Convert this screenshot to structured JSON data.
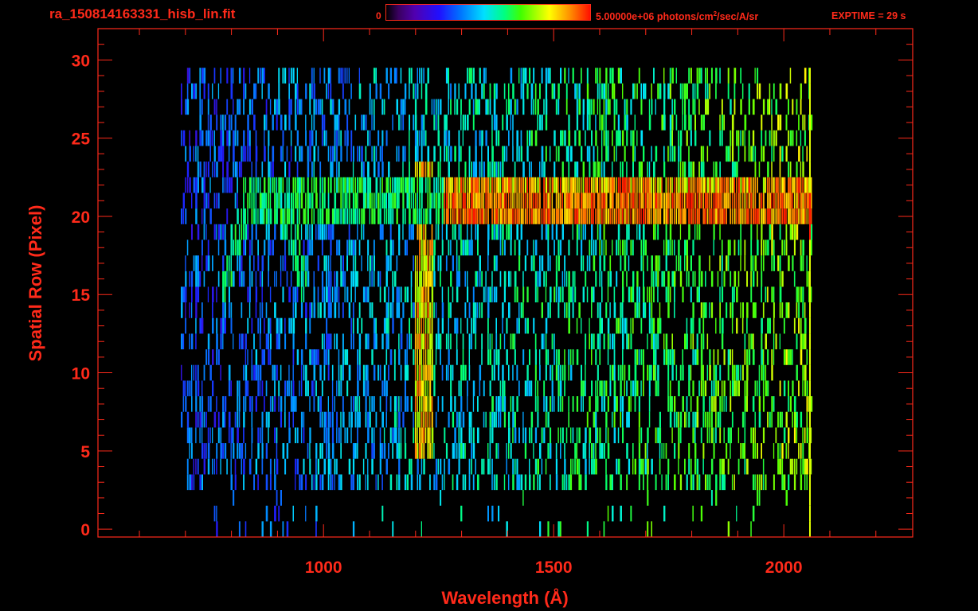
{
  "header": {
    "file_title": "ra_150814163331_hisb_lin.fit",
    "colorbar_min": "0",
    "colorbar_max": "5.00000e+06 photons/cm",
    "colorbar_max_sup": "2",
    "colorbar_max_tail": "/sec/A/sr",
    "exptime": "EXPTIME = 29 s"
  },
  "colors": {
    "axis": "#ff2a1a",
    "background": "#000000"
  },
  "chart_data": {
    "type": "heatmap",
    "title": "ra_150814163331_hisb_lin.fit",
    "xlabel": "Wavelength (Å)",
    "ylabel": "Spatial Row (Pixel)",
    "xlim": [
      510,
      2280
    ],
    "ylim": [
      -0.5,
      32
    ],
    "xticks": [
      1000,
      1500,
      2000
    ],
    "yticks": [
      0,
      5,
      10,
      15,
      20,
      25,
      30
    ],
    "colorbar": {
      "min": 0,
      "max": 5000000,
      "units": "photons/cm^2/sec/A/sr"
    },
    "rows": 31,
    "spectrum_range": [
      690,
      2060
    ],
    "features": [
      {
        "name": "Lyman-alpha emission",
        "wavelength": 1216,
        "rows": [
          5,
          23
        ],
        "level": 0.7
      },
      {
        "name": "bright continuum band",
        "wavelength_range": [
          1260,
          2060
        ],
        "rows": [
          20,
          23
        ],
        "level": 0.95
      },
      {
        "name": "faint band",
        "wavelength_range": [
          820,
          1260
        ],
        "rows": [
          20,
          23
        ],
        "level": 0.55
      },
      {
        "name": "arc feature",
        "wavelength_range": [
          780,
          960
        ],
        "rows": [
          15,
          22
        ],
        "level": 0.5
      }
    ]
  }
}
